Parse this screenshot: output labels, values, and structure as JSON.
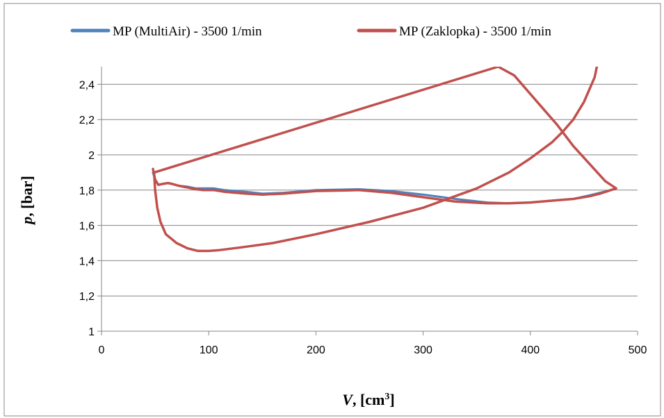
{
  "chart_data": {
    "type": "line",
    "title": "",
    "xlabel": {
      "var": "V",
      "rest": ", [cm",
      "sup": "3",
      "end": "]"
    },
    "ylabel": {
      "var": "p",
      "rest": ", [bar]"
    },
    "xlim": [
      0,
      500
    ],
    "ylim": [
      1,
      2.5
    ],
    "xticks": [
      0,
      100,
      200,
      300,
      400,
      500
    ],
    "xtick_labels": [
      "0",
      "100",
      "200",
      "300",
      "400",
      "500"
    ],
    "yticks": [
      1,
      1.2,
      1.4,
      1.6,
      1.8,
      2,
      2.2,
      2.4
    ],
    "ytick_labels": [
      "1",
      "1,2",
      "1,4",
      "1,6",
      "1,8",
      "2",
      "2,2",
      "2,4"
    ],
    "grid": {
      "y": true,
      "x": false
    },
    "legend_position": "top",
    "series": [
      {
        "name": "MP (MultiAir) - 3500 1/min",
        "color": "#4f81bd",
        "x": [
          48,
          50,
          53,
          57,
          62,
          66,
          72,
          80,
          88,
          95,
          105,
          115,
          125,
          135,
          150,
          170,
          200,
          240,
          270,
          300,
          330,
          360,
          380,
          400,
          420,
          440,
          455,
          465,
          475,
          480
        ],
        "y": [
          1.9,
          1.86,
          1.83,
          1.835,
          1.84,
          1.835,
          1.825,
          1.82,
          1.81,
          1.81,
          1.81,
          1.8,
          1.795,
          1.79,
          1.78,
          1.785,
          1.8,
          1.805,
          1.795,
          1.775,
          1.75,
          1.73,
          1.725,
          1.73,
          1.74,
          1.75,
          1.77,
          1.785,
          1.8,
          1.81
        ]
      },
      {
        "name": "MP (Zaklopka) - 3500 1/min",
        "color": "#c0504d",
        "x": [
          48,
          50,
          53,
          57,
          62,
          66,
          72,
          80,
          88,
          95,
          105,
          115,
          125,
          135,
          150,
          170,
          200,
          240,
          270,
          300,
          330,
          360,
          380,
          400,
          420,
          440,
          455,
          465,
          475,
          480,
          470,
          455,
          440,
          425,
          405,
          385,
          370,
          49,
          50,
          52,
          55,
          60,
          70,
          80,
          90,
          100,
          110,
          130,
          160,
          200,
          250,
          300,
          350,
          380,
          400,
          420,
          430,
          440,
          450,
          455,
          460,
          462
        ],
        "y": [
          1.92,
          1.86,
          1.83,
          1.835,
          1.84,
          1.835,
          1.825,
          1.815,
          1.805,
          1.8,
          1.8,
          1.79,
          1.785,
          1.78,
          1.775,
          1.78,
          1.795,
          1.8,
          1.785,
          1.76,
          1.735,
          1.725,
          1.725,
          1.73,
          1.74,
          1.75,
          1.765,
          1.78,
          1.8,
          1.81,
          1.85,
          1.95,
          2.05,
          2.17,
          2.31,
          2.45,
          2.5,
          1.9,
          1.8,
          1.7,
          1.62,
          1.55,
          1.5,
          1.47,
          1.455,
          1.455,
          1.46,
          1.475,
          1.5,
          1.55,
          1.62,
          1.7,
          1.81,
          1.9,
          1.98,
          2.07,
          2.13,
          2.2,
          2.3,
          2.37,
          2.44,
          2.5
        ]
      }
    ]
  }
}
